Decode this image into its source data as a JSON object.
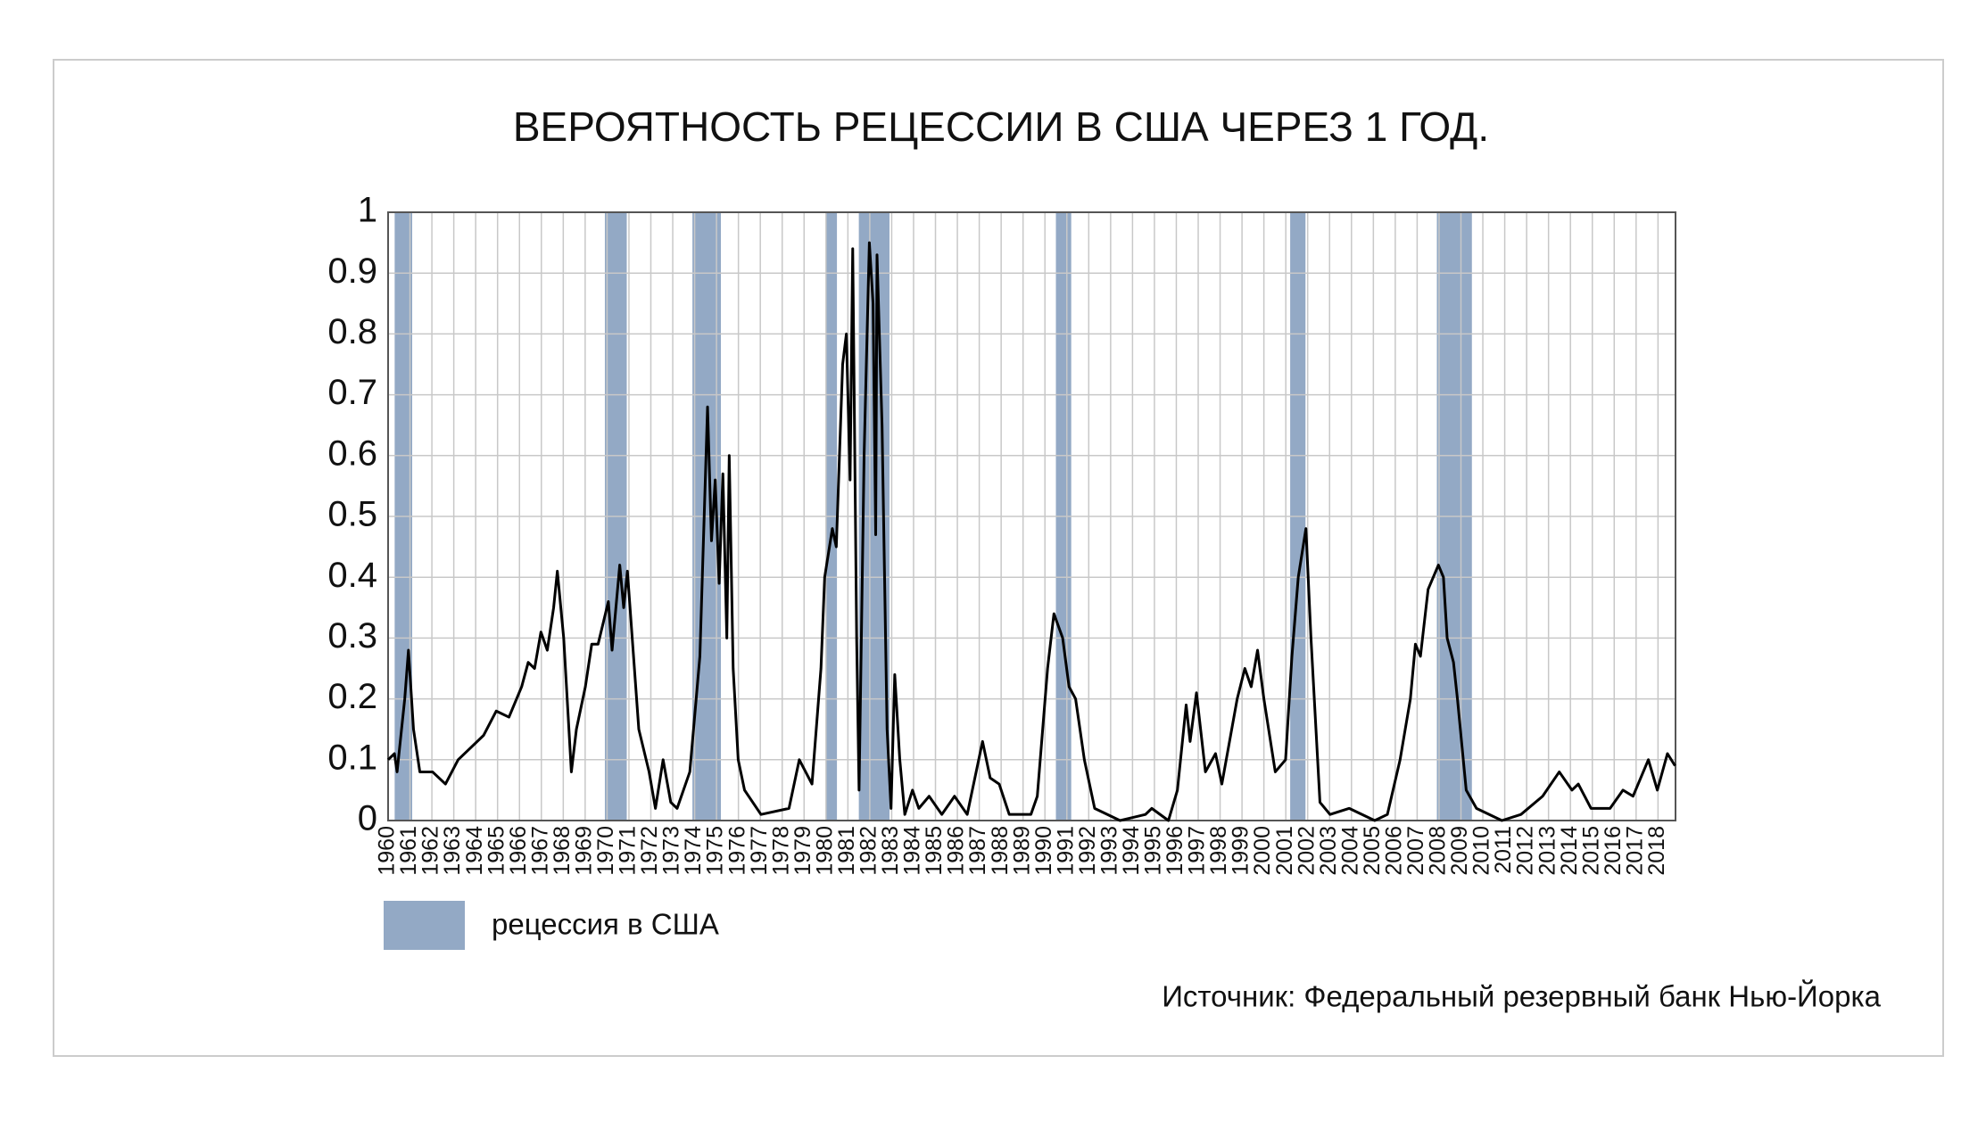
{
  "chart_data": {
    "type": "line",
    "title": "ВЕРОЯТНОСТЬ РЕЦЕССИИ В США ЧЕРЕЗ 1 ГОД.",
    "source": "Источник: Федеральный резервный банк Нью-Йорка",
    "color": "#000000",
    "x": [
      1960.0,
      1960.29,
      1960.41,
      1960.76,
      1960.93,
      1961.16,
      1961.45,
      1962.03,
      1962.62,
      1963.2,
      1963.78,
      1964.36,
      1964.94,
      1965.52,
      1966.1,
      1966.4,
      1966.69,
      1966.98,
      1967.27,
      1967.56,
      1967.73,
      1968.02,
      1968.37,
      1968.6,
      1969.01,
      1969.3,
      1969.59,
      1970.06,
      1970.23,
      1970.58,
      1970.76,
      1970.93,
      1971.45,
      1971.92,
      1972.21,
      1972.56,
      1972.91,
      1973.2,
      1973.78,
      1974.24,
      1974.59,
      1974.77,
      1974.94,
      1975.12,
      1975.29,
      1975.47,
      1975.58,
      1975.76,
      1975.99,
      1976.28,
      1977.03,
      1978.31,
      1978.78,
      1979.36,
      1979.77,
      1979.94,
      1980.29,
      1980.47,
      1980.76,
      1980.93,
      1981.1,
      1981.22,
      1981.4,
      1981.51,
      1981.74,
      1981.98,
      1982.15,
      1982.27,
      1982.33,
      1982.56,
      1982.79,
      1982.97,
      1983.14,
      1983.37,
      1983.6,
      1983.95,
      1984.24,
      1984.71,
      1985.29,
      1985.87,
      1986.45,
      1987.15,
      1987.5,
      1987.91,
      1988.37,
      1989.36,
      1989.65,
      1990.12,
      1990.41,
      1990.81,
      1991.1,
      1991.4,
      1991.8,
      1992.27,
      1993.43,
      1994.59,
      1994.88,
      1995.64,
      1996.05,
      1996.45,
      1996.63,
      1996.92,
      1997.33,
      1997.79,
      1998.08,
      1998.78,
      1999.13,
      1999.42,
      1999.71,
      2000.0,
      2000.52,
      2000.99,
      2001.28,
      2001.57,
      2001.92,
      2002.15,
      2002.56,
      2003.02,
      2003.9,
      2005.06,
      2005.64,
      2006.22,
      2006.69,
      2006.92,
      2007.15,
      2007.5,
      2007.97,
      2008.2,
      2008.37,
      2008.66,
      2008.84,
      2009.24,
      2009.71,
      2010.87,
      2011.74,
      2012.73,
      2013.49,
      2014.07,
      2014.36,
      2014.94,
      2015.81,
      2016.4,
      2016.86,
      2017.56,
      2017.97,
      2018.43,
      2018.78
    ],
    "values": [
      0.1,
      0.11,
      0.08,
      0.2,
      0.28,
      0.15,
      0.08,
      0.08,
      0.06,
      0.1,
      0.12,
      0.14,
      0.18,
      0.17,
      0.22,
      0.26,
      0.25,
      0.31,
      0.28,
      0.35,
      0.41,
      0.3,
      0.08,
      0.15,
      0.22,
      0.29,
      0.29,
      0.36,
      0.28,
      0.42,
      0.35,
      0.41,
      0.15,
      0.08,
      0.02,
      0.1,
      0.03,
      0.02,
      0.08,
      0.27,
      0.68,
      0.46,
      0.56,
      0.39,
      0.57,
      0.3,
      0.6,
      0.25,
      0.1,
      0.05,
      0.01,
      0.02,
      0.1,
      0.06,
      0.25,
      0.4,
      0.48,
      0.45,
      0.75,
      0.8,
      0.56,
      0.94,
      0.3,
      0.05,
      0.6,
      0.95,
      0.85,
      0.47,
      0.93,
      0.65,
      0.15,
      0.02,
      0.24,
      0.1,
      0.01,
      0.05,
      0.02,
      0.04,
      0.01,
      0.04,
      0.01,
      0.13,
      0.07,
      0.06,
      0.01,
      0.01,
      0.04,
      0.25,
      0.34,
      0.3,
      0.22,
      0.2,
      0.1,
      0.02,
      0.0,
      0.01,
      0.02,
      0.0,
      0.05,
      0.19,
      0.13,
      0.21,
      0.08,
      0.11,
      0.06,
      0.2,
      0.25,
      0.22,
      0.28,
      0.2,
      0.08,
      0.1,
      0.27,
      0.4,
      0.48,
      0.3,
      0.03,
      0.01,
      0.02,
      0.0,
      0.01,
      0.1,
      0.2,
      0.29,
      0.27,
      0.38,
      0.42,
      0.4,
      0.3,
      0.26,
      0.2,
      0.05,
      0.02,
      0.0,
      0.01,
      0.04,
      0.08,
      0.05,
      0.06,
      0.02,
      0.02,
      0.05,
      0.04,
      0.1,
      0.05,
      0.11,
      0.09
    ],
    "recessions": {
      "name": "рецессия в США",
      "color": "#93a9c5",
      "ranges": [
        [
          1960.3,
          1961.1
        ],
        [
          1969.9,
          1970.9
        ],
        [
          1973.9,
          1975.2
        ],
        [
          1980.0,
          1980.5
        ],
        [
          1981.5,
          1982.9
        ],
        [
          1990.5,
          1991.2
        ],
        [
          2001.2,
          2001.9
        ],
        [
          2007.9,
          2009.5
        ]
      ]
    },
    "xlim": [
      1960,
      2018.8
    ],
    "xticks": [
      1960,
      1961,
      1962,
      1963,
      1964,
      1965,
      1966,
      1967,
      1968,
      1969,
      1970,
      1971,
      1972,
      1973,
      1974,
      1975,
      1976,
      1977,
      1978,
      1979,
      1980,
      1981,
      1982,
      1983,
      1984,
      1985,
      1986,
      1987,
      1988,
      1989,
      1990,
      1991,
      1992,
      1993,
      1994,
      1995,
      1996,
      1997,
      1998,
      1999,
      2000,
      2001,
      2002,
      2003,
      2004,
      2005,
      2006,
      2007,
      2008,
      2009,
      2010,
      2011,
      2012,
      2013,
      2014,
      2015,
      2016,
      2017,
      2018
    ],
    "ylim": [
      0,
      1
    ],
    "yticks": [
      0,
      0.1,
      0.2,
      0.3,
      0.4,
      0.5,
      0.6,
      0.7,
      0.8,
      0.9,
      1
    ],
    "grid": true
  }
}
